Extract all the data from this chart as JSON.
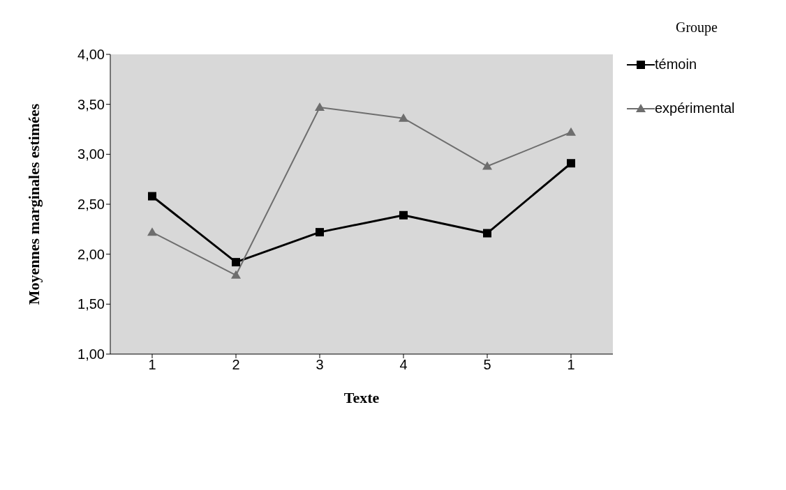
{
  "chart_data": {
    "type": "line",
    "xlabel": "Texte",
    "ylabel": "Moyennes marginales estimées",
    "legend_title": "Groupe",
    "categories": [
      "1",
      "2",
      "3",
      "4",
      "5",
      "1"
    ],
    "series": [
      {
        "name": "témoin",
        "color": "#000000",
        "marker": "square",
        "values": [
          2.58,
          1.92,
          2.22,
          2.39,
          2.21,
          2.91
        ]
      },
      {
        "name": "expérimental",
        "color": "#6e6e6e",
        "marker": "triangle",
        "values": [
          2.22,
          1.79,
          3.47,
          3.36,
          2.88,
          3.22
        ]
      }
    ],
    "ylim": [
      1,
      4
    ],
    "yticks": [
      {
        "value": 1,
        "label": "1,00"
      },
      {
        "value": 1.5,
        "label": "1,50"
      },
      {
        "value": 2,
        "label": "2,00"
      },
      {
        "value": 2.5,
        "label": "2,50"
      },
      {
        "value": 3,
        "label": "3,00"
      },
      {
        "value": 3.5,
        "label": "3,50"
      },
      {
        "value": 4,
        "label": "4,00"
      }
    ],
    "grid": false,
    "legend": "right"
  }
}
